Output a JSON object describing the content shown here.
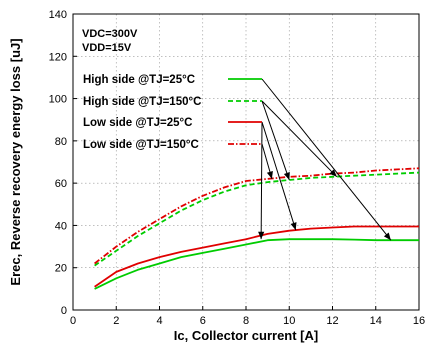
{
  "chart_data": {
    "type": "line",
    "ylabel": "Erec, Reverse recovery energy loss [uJ]",
    "xlabel": "Ic, Collector current [A]",
    "xlim": [
      0,
      16
    ],
    "ylim": [
      0,
      140
    ],
    "xticks": [
      "0",
      "2",
      "4",
      "6",
      "8",
      "10",
      "12",
      "14",
      "16"
    ],
    "yticks": [
      "0",
      "20",
      "40",
      "60",
      "80",
      "100",
      "120",
      "140"
    ],
    "grid": "dashed",
    "annotations": [
      "VDC=300V",
      "VDD=15V"
    ],
    "legend_position": "top-left",
    "series": [
      {
        "name": "High side @TJ=25°C",
        "color": "#00cc00",
        "dash": "solid",
        "x": [
          1,
          2,
          3,
          4,
          5,
          6,
          7,
          8,
          9,
          10,
          11,
          12,
          13,
          14,
          15,
          16
        ],
        "y": [
          10,
          15,
          19,
          22,
          25,
          27,
          29,
          31,
          33,
          33.5,
          33.5,
          33.5,
          33.3,
          33,
          33,
          33
        ]
      },
      {
        "name": "High side @TJ=150°C",
        "color": "#00cc00",
        "dash": "dashed",
        "x": [
          1,
          2,
          3,
          4,
          5,
          6,
          7,
          8,
          9,
          10,
          11,
          12,
          13,
          14,
          15,
          16
        ],
        "y": [
          21,
          28,
          35,
          41,
          47,
          52,
          56,
          59,
          60.5,
          61.5,
          62.5,
          63,
          63.5,
          64,
          64.5,
          65
        ]
      },
      {
        "name": "Low side @TJ=25°C",
        "color": "#e00000",
        "dash": "solid",
        "x": [
          1,
          2,
          3,
          4,
          5,
          6,
          7,
          8,
          9,
          10,
          11,
          12,
          13,
          14,
          15,
          16
        ],
        "y": [
          11,
          18,
          22,
          25,
          27.5,
          29.5,
          31.5,
          33.5,
          36,
          37.5,
          38.5,
          39,
          39.5,
          39.5,
          39.5,
          39.5
        ]
      },
      {
        "name": "Low side @TJ=150°C",
        "color": "#e00000",
        "dash": "dashdot",
        "x": [
          1,
          2,
          3,
          4,
          5,
          6,
          7,
          8,
          9,
          10,
          11,
          12,
          13,
          14,
          15,
          16
        ],
        "y": [
          22,
          30,
          37,
          43,
          49,
          54,
          58,
          61,
          62,
          63,
          63.5,
          64.5,
          65,
          66,
          66.5,
          67
        ]
      }
    ],
    "legend_arrows": [
      {
        "series": 0,
        "to": [
          14.7,
          33
        ]
      },
      {
        "series": 1,
        "to": [
          12.2,
          63
        ]
      },
      {
        "series": 2,
        "to": [
          10.3,
          37.8
        ]
      },
      {
        "series": 3,
        "to": [
          9.2,
          62
        ]
      },
      {
        "series": 2,
        "to": [
          8.7,
          33.5
        ]
      },
      {
        "series": 1,
        "to": [
          10,
          61.5
        ]
      }
    ]
  }
}
